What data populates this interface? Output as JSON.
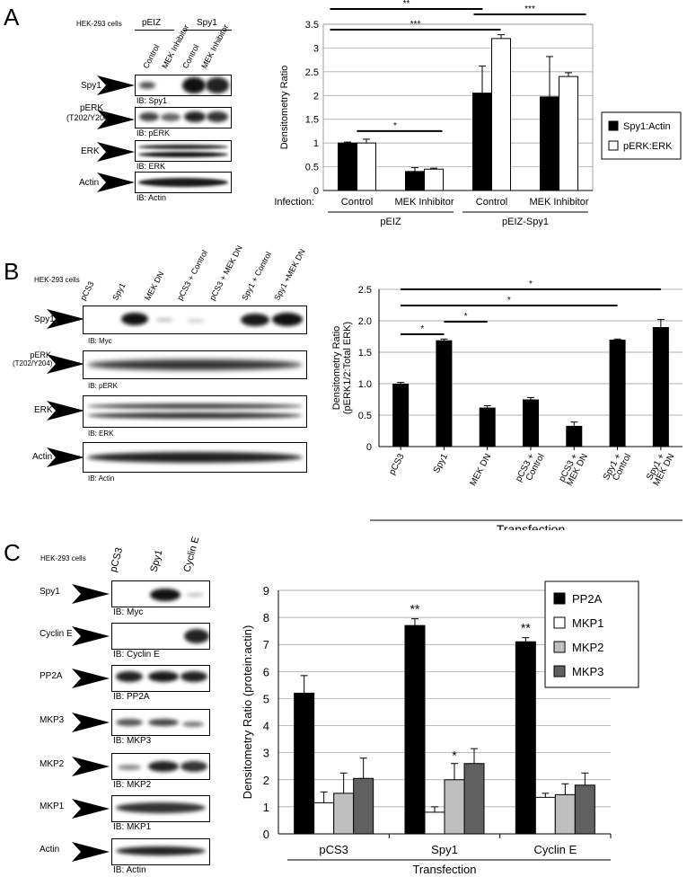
{
  "panel_a": {
    "letter": "A",
    "cells": "HEK-293 cells",
    "group_peiz": "pEIZ",
    "group_spy1": "Spy1",
    "lanes": [
      "Control",
      "MEK Inhibitor",
      "Control",
      "MEK Inhibitor"
    ],
    "blots": [
      {
        "label": "Spy1",
        "ib": "IB: Spy1"
      },
      {
        "label": "pERK",
        "label2": "(T202/Y204)",
        "ib": "IB: pERK"
      },
      {
        "label": "ERK",
        "ib": "IB: ERK"
      },
      {
        "label": "Actin",
        "ib": "IB: Actin"
      }
    ]
  },
  "panel_b": {
    "letter": "B",
    "cells": "HEK-293 cells",
    "lanes": [
      "pCS3",
      "Spy1",
      "MEK DN",
      "pCS3 + Control",
      "pCS3 + MEK DN",
      "Spy1 + Control",
      "Spy1 +MEK DN"
    ],
    "blots": [
      {
        "label": "Spy1",
        "ib": "IB: Myc"
      },
      {
        "label": "pERK",
        "label2": "(T202/Y204)",
        "ib": "IB: pERK"
      },
      {
        "label": "ERK",
        "ib": "IB: ERK"
      },
      {
        "label": "Actin",
        "ib": "IB: Actin"
      }
    ]
  },
  "panel_c": {
    "letter": "C",
    "cells": "HEK-293 cells",
    "lanes": [
      "pCS3",
      "Spy1",
      "Cyclin E"
    ],
    "blots": [
      {
        "label": "Spy1",
        "ib": "IB: Myc"
      },
      {
        "label": "Cyclin E",
        "ib": "IB: Cyclin E"
      },
      {
        "label": "PP2A",
        "ib": "IB: PP2A"
      },
      {
        "label": "MKP3",
        "ib": "IB: MKP3"
      },
      {
        "label": "MKP2",
        "ib": "IB: MKP2"
      },
      {
        "label": "MKP1",
        "ib": "IB: MKP1"
      },
      {
        "label": "Actin",
        "ib": "IB: Actin"
      }
    ]
  },
  "chart_data": [
    {
      "type": "bar",
      "ylabel": "Densitometry Ratio",
      "ylim": [
        0,
        3.5
      ],
      "yticks": [
        "0",
        "0.5",
        "1",
        "1.5",
        "2",
        "2.5",
        "3",
        "3.5"
      ],
      "xprefix": "Infection:",
      "categories": [
        "Control",
        "MEK Inhibitor",
        "Control",
        "MEK Inhibitor"
      ],
      "groups": [
        "pEIZ",
        "pEIZ-Spy1"
      ],
      "series": [
        {
          "name": "Spy1:Actin",
          "color": "#000000",
          "values": [
            1.0,
            0.4,
            2.05,
            1.97
          ],
          "errors": [
            0.02,
            0.08,
            0.57,
            0.85
          ]
        },
        {
          "name": "pERK:ERK",
          "color": "#ffffff",
          "values": [
            1.0,
            0.45,
            3.2,
            2.4
          ],
          "errors": [
            0.08,
            0.02,
            0.08,
            0.08
          ]
        }
      ],
      "significance": [
        "**",
        "***",
        "***",
        "*"
      ],
      "legend": "right"
    },
    {
      "type": "bar",
      "ylabel": "Densitometry Ratio",
      "ylabel2": "(pERK1/2:Total ERK)",
      "ylim": [
        0,
        2.5
      ],
      "yticks": [
        "0",
        "0.5",
        "1.0",
        "1.5",
        "2.0",
        "2.5"
      ],
      "categories": [
        "pCS3",
        "Spy1",
        "MEK DN",
        "pCS3 + Control",
        "pCS3 + MEK DN",
        "Spy1 + Control",
        "Spy1 + MEK DN"
      ],
      "category_lines": [
        [
          "pCS3"
        ],
        [
          "Spy1"
        ],
        [
          "MEK DN"
        ],
        [
          "pCS3 +",
          "Control"
        ],
        [
          "pCS3 +",
          "MEK DN"
        ],
        [
          "Spy1 +",
          "Control"
        ],
        [
          "Spy1 +",
          "MEK DN"
        ]
      ],
      "values": [
        1.0,
        1.69,
        0.62,
        0.75,
        0.33,
        1.7,
        1.9
      ],
      "errors": [
        0.02,
        0.02,
        0.03,
        0.03,
        0.06,
        0.01,
        0.12
      ],
      "significance": [
        "*",
        "*",
        "*",
        "*"
      ],
      "xlabel": "Transfection"
    },
    {
      "type": "bar",
      "ylabel": "Densitometry Ratio (protein:actin)",
      "ylim": [
        0,
        9
      ],
      "yticks": [
        "0",
        "1",
        "2",
        "3",
        "4",
        "5",
        "6",
        "7",
        "8",
        "9"
      ],
      "categories": [
        "pCS3",
        "Spy1",
        "Cyclin E"
      ],
      "series": [
        {
          "name": "PP2A",
          "color": "#000000",
          "values": [
            5.2,
            7.7,
            7.1
          ],
          "errors": [
            0.65,
            0.25,
            0.15
          ]
        },
        {
          "name": "MKP1",
          "color": "#ffffff",
          "values": [
            1.15,
            0.8,
            1.35
          ],
          "errors": [
            0.4,
            0.2,
            0.15
          ]
        },
        {
          "name": "MKP2",
          "color": "#bfbfbf",
          "values": [
            1.5,
            2.0,
            1.45
          ],
          "errors": [
            0.75,
            0.6,
            0.4
          ]
        },
        {
          "name": "MKP3",
          "color": "#606060",
          "values": [
            2.05,
            2.6,
            1.8
          ],
          "errors": [
            0.75,
            0.55,
            0.45
          ]
        }
      ],
      "significance": [
        "**",
        "**",
        "*"
      ],
      "xlabel": "Transfection",
      "legend": "top-right"
    }
  ]
}
